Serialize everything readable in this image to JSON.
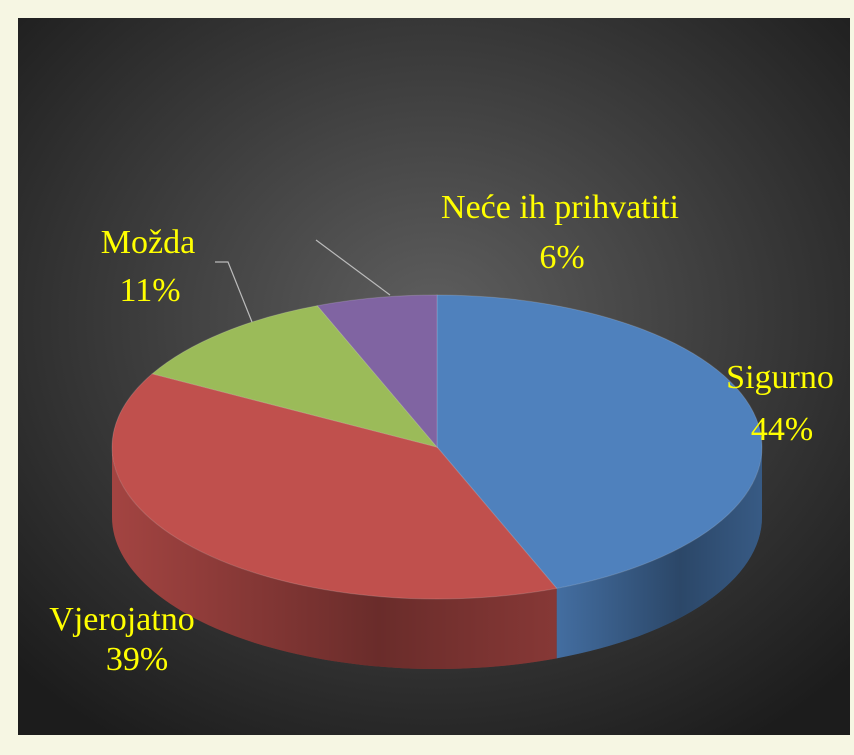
{
  "chart_data": {
    "type": "pie",
    "categories": [
      "Sigurno",
      "Vjerojatno",
      "Možda",
      "Neće ih prihvatiti"
    ],
    "values": [
      44,
      39,
      11,
      6
    ],
    "value_labels": [
      "44%",
      "39%",
      "11%",
      "6%"
    ],
    "colors": [
      "#4f81bd",
      "#c0504d",
      "#9bbb59",
      "#8064a2"
    ]
  }
}
